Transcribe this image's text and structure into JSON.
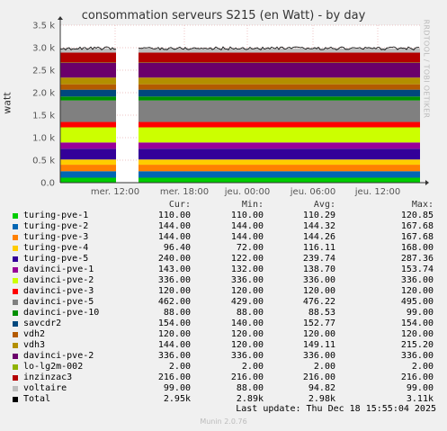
{
  "title": "consommation serveurs S215 (en Watt) - by day",
  "ylabel": "watt",
  "watermark": "RRDTOOL / TOBI OETIKER",
  "footer": "Last update: Thu Dec 18 15:55:04 2025",
  "munin": "Munin 2.0.76",
  "legend_headers": [
    "Cur:",
    "Min:",
    "Avg:",
    "Max:"
  ],
  "chart_data": {
    "type": "area",
    "stacked": true,
    "title": "consommation serveurs S215 (en Watt) - by day",
    "ylabel": "watt",
    "ylim": [
      0,
      3500
    ],
    "yticks": [
      "0.0",
      "0.5 k",
      "1.0 k",
      "1.5 k",
      "2.0 k",
      "2.5 k",
      "3.0 k",
      "3.5 k"
    ],
    "xticks": [
      "mer. 12:00",
      "mer. 18:00",
      "jeu. 00:00",
      "jeu. 06:00",
      "jeu. 12:00"
    ],
    "grid": true,
    "gap": "between mer. 12:00 and mer. 18:00 (no data)",
    "series": [
      {
        "name": "turing-pve-1",
        "color": "#00cc00",
        "cur": "110.00",
        "min": "110.00",
        "avg": "110.29",
        "max": "120.85"
      },
      {
        "name": "turing-pve-2",
        "color": "#0066b3",
        "cur": "144.00",
        "min": "144.00",
        "avg": "144.32",
        "max": "167.68"
      },
      {
        "name": "turing-pve-3",
        "color": "#ff8000",
        "cur": "144.00",
        "min": "144.00",
        "avg": "144.26",
        "max": "167.68"
      },
      {
        "name": "turing-pve-4",
        "color": "#ffcc00",
        "cur": "96.40",
        "min": "72.00",
        "avg": "116.11",
        "max": "168.00"
      },
      {
        "name": "turing-pve-5",
        "color": "#330099",
        "cur": "240.00",
        "min": "122.00",
        "avg": "239.74",
        "max": "287.36"
      },
      {
        "name": "davinci-pve-1",
        "color": "#990099",
        "cur": "143.00",
        "min": "132.00",
        "avg": "138.70",
        "max": "153.74"
      },
      {
        "name": "davinci-pve-2",
        "color": "#ccff00",
        "cur": "336.00",
        "min": "336.00",
        "avg": "336.00",
        "max": "336.00"
      },
      {
        "name": "davinci-pve-3",
        "color": "#ff0000",
        "cur": "120.00",
        "min": "120.00",
        "avg": "120.00",
        "max": "120.00"
      },
      {
        "name": "davinci-pve-5",
        "color": "#808080",
        "cur": "462.00",
        "min": "429.00",
        "avg": "476.22",
        "max": "495.00"
      },
      {
        "name": "davinci-pve-10",
        "color": "#008f00",
        "cur": "88.00",
        "min": "88.00",
        "avg": "88.53",
        "max": "99.00"
      },
      {
        "name": "savcdr2",
        "color": "#00487d",
        "cur": "154.00",
        "min": "140.00",
        "avg": "152.77",
        "max": "154.00"
      },
      {
        "name": "vdh2",
        "color": "#b35a00",
        "cur": "120.00",
        "min": "120.00",
        "avg": "120.00",
        "max": "120.00"
      },
      {
        "name": "vdh3",
        "color": "#b38f00",
        "cur": "144.00",
        "min": "120.00",
        "avg": "149.11",
        "max": "215.20"
      },
      {
        "name": "davinci-pve-2",
        "color": "#6b006b",
        "cur": "336.00",
        "min": "336.00",
        "avg": "336.00",
        "max": "336.00"
      },
      {
        "name": "lo-lg2m-002",
        "color": "#8fb300",
        "cur": "2.00",
        "min": "2.00",
        "avg": "2.00",
        "max": "2.00"
      },
      {
        "name": "inzinzac3",
        "color": "#b30000",
        "cur": "216.00",
        "min": "216.00",
        "avg": "216.00",
        "max": "216.00"
      },
      {
        "name": "voltaire",
        "color": "#bebebe",
        "cur": "99.00",
        "min": "88.00",
        "avg": "94.82",
        "max": "99.00"
      },
      {
        "name": "Total",
        "color": "#000000",
        "cur": "2.95k",
        "min": "2.89k",
        "avg": "2.98k",
        "max": "3.11k"
      }
    ]
  }
}
